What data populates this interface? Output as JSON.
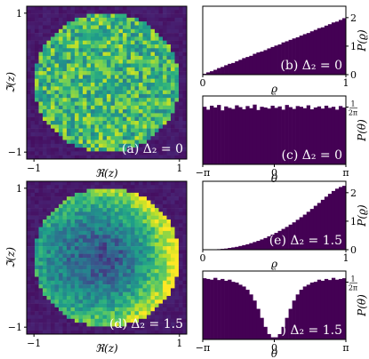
{
  "colors": {
    "viridis": [
      "#440154",
      "#482878",
      "#3e4989",
      "#31688e",
      "#26828e",
      "#1f9e89",
      "#35b779",
      "#6ece58",
      "#b5de2b",
      "#fde725"
    ],
    "bar": "#440154",
    "panel_label_text": "#ffffff",
    "axes": "#000000",
    "background": "#ffffff"
  },
  "chart_data": [
    {
      "id": "a",
      "type": "heatmap",
      "label": "(a) Δ₂ = 0",
      "xlabel": "ℜ(z)",
      "ylabel": "ℑ(z)",
      "xlim": [
        -1.1,
        1.1
      ],
      "ylim": [
        -1.1,
        1.1
      ],
      "xticks": [
        -1,
        1
      ],
      "xtick_labels": [
        "−1",
        "1"
      ],
      "yticks": [
        -1,
        1
      ],
      "ytick_labels": [
        "−1",
        "1"
      ],
      "grid_size": 40,
      "support": "unit disk",
      "description_of_density": "uniform over the unit disk",
      "hole_depth": 0
    },
    {
      "id": "b",
      "type": "bar",
      "label": "(b) Δ₂ = 0",
      "xlabel": "ϱ",
      "ylabel": "P(ϱ)",
      "xlim": [
        0,
        1
      ],
      "ylim": [
        0,
        2.4
      ],
      "xticks": [
        0,
        1
      ],
      "xtick_labels": [
        "0",
        "1"
      ],
      "yticks": [
        0,
        1,
        2
      ],
      "ytick_labels": [
        "0",
        "1",
        "2"
      ],
      "bins": 40,
      "values": [
        0.03,
        0.08,
        0.12,
        0.17,
        0.23,
        0.27,
        0.33,
        0.38,
        0.41,
        0.47,
        0.52,
        0.58,
        0.62,
        0.66,
        0.73,
        0.78,
        0.81,
        0.86,
        0.92,
        0.97,
        1.02,
        1.06,
        1.13,
        1.17,
        1.22,
        1.27,
        1.31,
        1.37,
        1.42,
        1.46,
        1.52,
        1.57,
        1.63,
        1.66,
        1.72,
        1.77,
        1.83,
        1.86,
        1.92,
        1.98
      ]
    },
    {
      "id": "c",
      "type": "bar",
      "label": "(c) Δ₂ = 0",
      "xlabel": "θ",
      "ylabel": "P(θ)",
      "xlim": [
        -3.14159,
        3.14159
      ],
      "ylim": [
        0,
        0.19
      ],
      "xticks": [
        -3.14159,
        0,
        3.14159
      ],
      "xtick_labels": [
        "−π",
        "0",
        "π"
      ],
      "yticks": [
        0.159155
      ],
      "ytick_labels": [
        "1/2π"
      ],
      "bins": 40,
      "values": [
        0.16,
        0.152,
        0.163,
        0.158,
        0.165,
        0.15,
        0.161,
        0.157,
        0.154,
        0.164,
        0.159,
        0.153,
        0.162,
        0.156,
        0.166,
        0.151,
        0.16,
        0.158,
        0.155,
        0.163,
        0.157,
        0.161,
        0.152,
        0.165,
        0.159,
        0.154,
        0.162,
        0.16,
        0.156,
        0.164,
        0.153,
        0.158,
        0.161,
        0.155,
        0.163,
        0.157,
        0.16,
        0.152,
        0.162,
        0.158
      ]
    },
    {
      "id": "d",
      "type": "heatmap",
      "label": "(d) Δ₂ = 1.5",
      "xlabel": "ℜ(z)",
      "ylabel": "ℑ(z)",
      "xlim": [
        -1.1,
        1.1
      ],
      "ylim": [
        -1.1,
        1.1
      ],
      "xticks": [
        -1,
        1
      ],
      "xtick_labels": [
        "−1",
        "1"
      ],
      "yticks": [
        -1,
        1
      ],
      "ytick_labels": [
        "−1",
        "1"
      ],
      "grid_size": 40,
      "support": "unit disk",
      "description_of_density": "depleted toward the center and along the negative real axis",
      "hole_depth": 1
    },
    {
      "id": "e",
      "type": "bar",
      "label": "(e) Δ₂ = 1.5",
      "xlabel": "ϱ",
      "ylabel": "P(ϱ)",
      "xlim": [
        0,
        1
      ],
      "ylim": [
        0,
        2.4
      ],
      "xticks": [
        0,
        1
      ],
      "xtick_labels": [
        "0",
        "1"
      ],
      "yticks": [
        0,
        1,
        2
      ],
      "ytick_labels": [
        "0",
        "1",
        "2"
      ],
      "bins": 40,
      "values": [
        0.0,
        0.0,
        0.01,
        0.01,
        0.02,
        0.03,
        0.04,
        0.06,
        0.08,
        0.1,
        0.13,
        0.16,
        0.19,
        0.23,
        0.27,
        0.31,
        0.36,
        0.41,
        0.47,
        0.53,
        0.59,
        0.66,
        0.73,
        0.8,
        0.88,
        0.96,
        1.05,
        1.14,
        1.23,
        1.33,
        1.43,
        1.54,
        1.64,
        1.75,
        1.86,
        1.96,
        2.06,
        2.14,
        2.2,
        2.24
      ]
    },
    {
      "id": "f",
      "type": "bar",
      "label": "(f) Δ₂ = 1.5",
      "xlabel": "θ",
      "ylabel": "P(θ)",
      "xlim": [
        -3.14159,
        3.14159
      ],
      "ylim": [
        0,
        0.19
      ],
      "xticks": [
        -3.14159,
        0,
        3.14159
      ],
      "xtick_labels": [
        "−π",
        "0",
        "π"
      ],
      "yticks": [
        0.159155
      ],
      "ytick_labels": [
        "1/2π"
      ],
      "bins": 40,
      "values": [
        0.17,
        0.168,
        0.166,
        0.171,
        0.165,
        0.168,
        0.163,
        0.166,
        0.16,
        0.158,
        0.152,
        0.147,
        0.138,
        0.125,
        0.108,
        0.085,
        0.06,
        0.035,
        0.015,
        0.006,
        0.006,
        0.015,
        0.035,
        0.06,
        0.085,
        0.108,
        0.125,
        0.138,
        0.147,
        0.152,
        0.158,
        0.16,
        0.166,
        0.163,
        0.168,
        0.165,
        0.171,
        0.166,
        0.168,
        0.17
      ]
    }
  ]
}
